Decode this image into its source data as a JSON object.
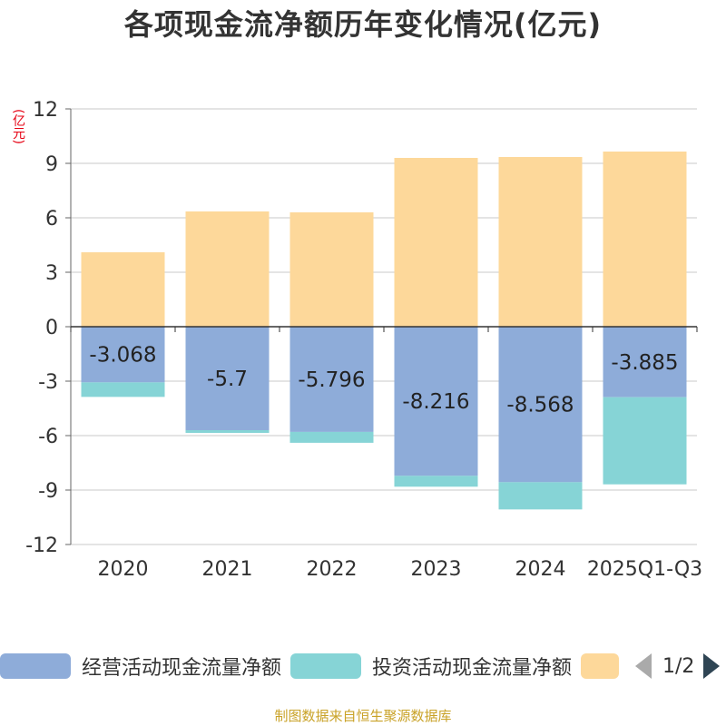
{
  "chart_data": {
    "type": "bar",
    "stacked": true,
    "title": "各项现金流净额历年变化情况(亿元)",
    "ylabel": "(亿元)",
    "ylim": [
      -12,
      12
    ],
    "yticks": [
      12,
      9,
      6,
      3,
      0,
      -3,
      -6,
      -9,
      -12
    ],
    "categories": [
      "2020",
      "2021",
      "2022",
      "2023",
      "2024",
      "2025Q1-Q3"
    ],
    "series": [
      {
        "name": "经营活动现金流量净额",
        "color": "#8eacd9",
        "values": [
          -3.068,
          -5.7,
          -5.796,
          -8.216,
          -8.568,
          -3.885
        ],
        "labels": [
          "-3.068",
          "-5.7",
          "-5.796",
          "-8.216",
          "-8.568",
          "-3.885"
        ]
      },
      {
        "name": "投资活动现金流量净额",
        "color": "#86d4d6",
        "values": [
          -0.8,
          -0.15,
          -0.6,
          -0.6,
          -1.5,
          -4.8
        ]
      },
      {
        "name": "",
        "color": "#fdd89a",
        "values": [
          4.1,
          6.35,
          6.3,
          9.3,
          9.35,
          9.65
        ]
      }
    ],
    "legend": {
      "position": "bottom",
      "page": "1/2"
    }
  },
  "source": "制图数据来自恒生聚源数据库"
}
